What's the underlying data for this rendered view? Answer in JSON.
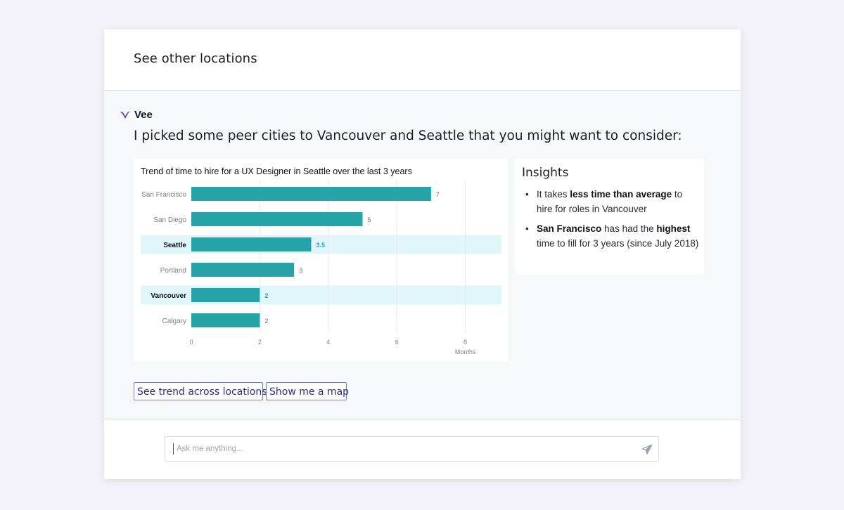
{
  "header": {
    "title": "See other locations"
  },
  "assistant": {
    "name": "Vee",
    "logo": "vee-logo-icon",
    "brand_color": "#2e2c7e"
  },
  "message": {
    "text": "I picked some peer cities to Vancouver and Seattle that you might want to consider:"
  },
  "chart_data": {
    "type": "bar",
    "orientation": "horizontal",
    "title": "Trend of time to hire for a UX Designer in Seattle over the last 3 years",
    "categories": [
      "San Francisco",
      "San Diego",
      "Seattle",
      "Portland",
      "Vancouver",
      "Calgary"
    ],
    "values": [
      7,
      5,
      3.5,
      3,
      2,
      2
    ],
    "value_labels": [
      "7",
      "5",
      "3.5",
      "3",
      "2",
      "2"
    ],
    "highlighted": [
      "Seattle",
      "Vancouver"
    ],
    "xlabel": "Months",
    "ylabel": "",
    "xlim": [
      0,
      9
    ],
    "xticks": [
      0,
      2,
      4,
      6,
      8
    ],
    "grid": true,
    "bar_color": "#26a4a8",
    "highlight_color": "#e0f6f8",
    "highlight_label_color": "#1fa2b4"
  },
  "insights": {
    "title": "Insights",
    "items": [
      {
        "pre": "It takes ",
        "bold": "less time than average",
        "post": " to hire for roles in Vancouver"
      },
      {
        "pre": "",
        "bold": "San Francisco",
        "mid": " has had the ",
        "bold2": "highest",
        "post": " time to fill for 3 years (since July 2018)"
      }
    ]
  },
  "actions": {
    "trend_label": "See trend across locations",
    "map_label": "Show me a map"
  },
  "input": {
    "placeholder": "Ask me anything...",
    "value": "",
    "send_icon": "send-icon"
  }
}
